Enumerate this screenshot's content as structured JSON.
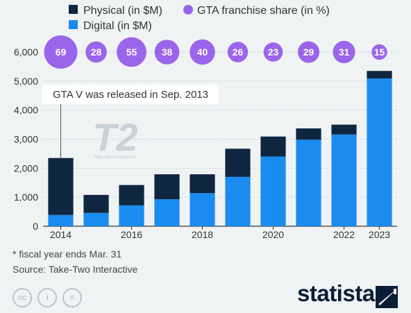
{
  "chart_data": {
    "type": "bar",
    "stacked": true,
    "categories": [
      "2014",
      "2015",
      "2016",
      "2017",
      "2018",
      "2019",
      "2020",
      "2021",
      "2022",
      "2023"
    ],
    "tick_labels": [
      "2014",
      "",
      "2016",
      "",
      "2018",
      "",
      "2020",
      "",
      "2022",
      "2023"
    ],
    "series": [
      {
        "name": "Digital (in $M)",
        "color": "#1a8cf0",
        "values": [
          390,
          460,
          720,
          930,
          1140,
          1700,
          2400,
          2980,
          3160,
          5090
        ]
      },
      {
        "name": "Physical (in $M)",
        "color": "#0f2641",
        "values": [
          1960,
          620,
          700,
          860,
          650,
          970,
          690,
          390,
          340,
          260
        ]
      }
    ],
    "overlay_series": {
      "name": "GTA franchise share (in %)",
      "color": "#9b65eb",
      "type": "bubble",
      "values": [
        69,
        28,
        55,
        38,
        40,
        26,
        23,
        29,
        31,
        15
      ]
    },
    "ylim": [
      0,
      6000
    ],
    "yticks": [
      0,
      1000,
      2000,
      3000,
      4000,
      5000,
      6000
    ],
    "ytick_labels": [
      "0",
      "1,000",
      "2,000",
      "3,000",
      "4,000",
      "5,000",
      "6,000"
    ],
    "annotation": {
      "text": "GTA V was released in Sep. 2013",
      "category_index": 0
    },
    "grid": true,
    "legend_position": "top-left"
  },
  "watermark": {
    "text": "T2",
    "subtext": "TAKE-TWO INTERACTIVE"
  },
  "footnote": "* fiscal year ends Mar. 31",
  "source": "Source: Take-Two Interactive",
  "license_icons": [
    "cc-icon",
    "attribution-icon",
    "no-derivatives-icon"
  ],
  "license_icon_labels": [
    "cc",
    "i",
    "="
  ],
  "brand": {
    "logo_text": "statista"
  }
}
